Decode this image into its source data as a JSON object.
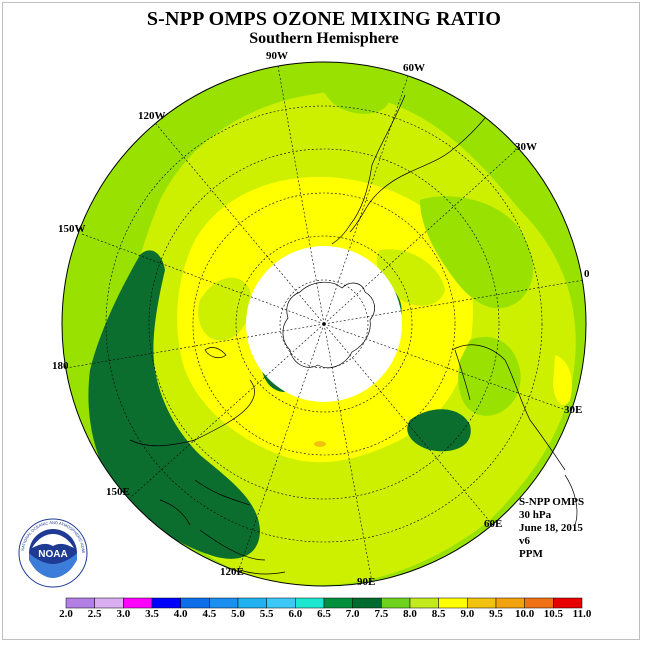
{
  "title": "S-NPP OMPS OZONE MIXING RATIO",
  "subtitle": "Southern Hemisphere",
  "longitude_labels": [
    "90W",
    "60W",
    "120W",
    "30W",
    "150W",
    "0",
    "180",
    "30E",
    "150E",
    "60E",
    "120E",
    "90E"
  ],
  "info": {
    "instrument": "S-NPP OMPS",
    "level": "30 hPa",
    "date": "June 18, 2015",
    "version": "v6",
    "units": "PPM"
  },
  "logo_text": "NOAA",
  "colorbar": {
    "labels": [
      "2.0",
      "2.5",
      "3.0",
      "3.5",
      "4.0",
      "4.5",
      "5.0",
      "5.5",
      "6.0",
      "6.5",
      "7.0",
      "7.5",
      "8.0",
      "8.5",
      "9.0",
      "9.5",
      "10.0",
      "10.5",
      "11.0"
    ],
    "colors": [
      "#b27fe5",
      "#d8aef0",
      "#ff00ff",
      "#0000ff",
      "#0d6fe8",
      "#1a8ff0",
      "#21b0f0",
      "#3ec8f5",
      "#1de7cf",
      "#008f3c",
      "#006b2e",
      "#6fd21e",
      "#c2ea1d",
      "#ffff00",
      "#f2c30e",
      "#f2a20e",
      "#f07014",
      "#e80000",
      "#8a4a32"
    ]
  }
}
